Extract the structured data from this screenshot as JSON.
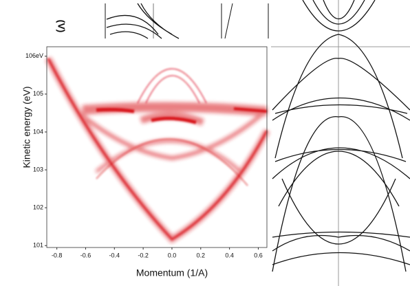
{
  "chart_data": {
    "type": "image",
    "top_label": "(V)",
    "ylabel": "Kinetic energy (eV)",
    "xlabel": "Momentum (1/A)",
    "xlim": [
      -0.87,
      0.66
    ],
    "ylim": [
      100.95,
      106.25
    ],
    "xticks": [
      -0.8,
      -0.6,
      -0.4,
      -0.2,
      {
        "value": 0,
        "label": "0.0"
      },
      0.2,
      0.4,
      0.6
    ],
    "yticks": [
      {
        "value": 106,
        "label": "106eV"
      },
      105,
      104,
      103,
      102,
      101
    ]
  }
}
